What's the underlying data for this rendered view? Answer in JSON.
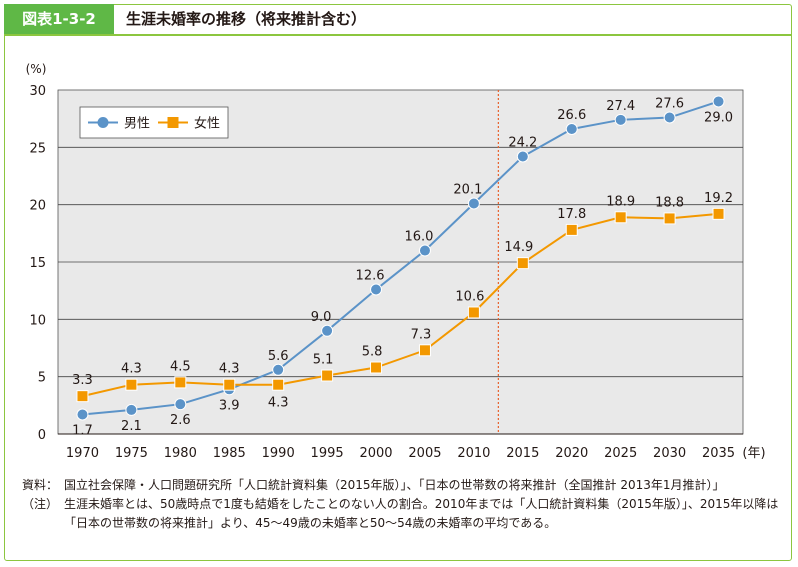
{
  "header": {
    "figure_label": "図表1-3-2",
    "title": "生涯未婚率の推移（将来推計含む）"
  },
  "chart_data": {
    "type": "line",
    "ylabel": "(%)",
    "xlabel": "(年)",
    "ylim": [
      0,
      30
    ],
    "yticks": [
      0,
      5,
      10,
      15,
      20,
      25,
      30
    ],
    "categories": [
      "1970",
      "1975",
      "1980",
      "1985",
      "1990",
      "1995",
      "2000",
      "2005",
      "2010",
      "2015",
      "2020",
      "2025",
      "2030",
      "2035"
    ],
    "projection_divider_between": [
      "2010",
      "2015"
    ],
    "legend_position": "top-left",
    "series": [
      {
        "name": "男性",
        "color": "#5b93c8",
        "marker": "circle",
        "values": [
          1.7,
          2.1,
          2.6,
          3.9,
          5.6,
          9.0,
          12.6,
          16.0,
          20.1,
          24.2,
          26.6,
          27.4,
          27.6,
          29.0
        ],
        "labels": [
          "1.7",
          "2.1",
          "2.6",
          "3.9",
          "5.6",
          "9.0",
          "12.6",
          "16.0",
          "20.1",
          "24.2",
          "26.6",
          "27.4",
          "27.6",
          "29.0"
        ]
      },
      {
        "name": "女性",
        "color": "#f39800",
        "marker": "square",
        "values": [
          3.3,
          4.3,
          4.5,
          4.3,
          4.3,
          5.1,
          5.8,
          7.3,
          10.6,
          14.9,
          17.8,
          18.9,
          18.8,
          19.2
        ],
        "labels": [
          "3.3",
          "4.3",
          "4.5",
          "4.3",
          "4.3",
          "5.1",
          "5.8",
          "7.3",
          "10.6",
          "14.9",
          "17.8",
          "18.9",
          "18.8",
          "19.2"
        ]
      }
    ]
  },
  "notes": {
    "source_tag": "資料：",
    "source_text": "国立社会保障・人口問題研究所「人口統計資料集（2015年版）」、「日本の世帯数の将来推計（全国推計 2013年1月推計）」",
    "note_tag": "（注）",
    "note_text": "生涯未婚率とは、50歳時点で1度も結婚をしたことのない人の割合。2010年までは「人口統計資料集（2015年版）」、2015年以降は「日本の世帯数の将来推計」より、45～49歳の未婚率と50～54歳の未婚率の平均である。"
  }
}
